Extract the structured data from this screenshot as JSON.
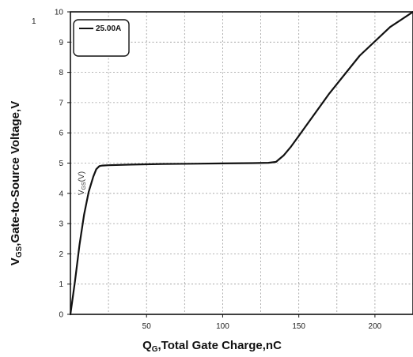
{
  "chart_data": {
    "type": "line",
    "panel_label": "1",
    "xlabel": {
      "main": "Q",
      "sub": "G",
      "rest": ",Total Gate Charge,nC"
    },
    "ylabel": {
      "main": "V",
      "sub": "GS",
      "rest": ",Gate-to-Source Voltage,V"
    },
    "inner_ylabel": "Vɢₛ(V)",
    "inner_ylabel_main": "V",
    "inner_ylabel_sub": "GS",
    "inner_ylabel_rest": "(V)",
    "xlim": [
      0,
      225
    ],
    "ylim": [
      0,
      10
    ],
    "x_ticks": [
      50,
      100,
      150,
      200
    ],
    "y_ticks": [
      0,
      1,
      2,
      3,
      4,
      5,
      6,
      7,
      8,
      9,
      10
    ],
    "x_grid": [
      25,
      50,
      75,
      100,
      125,
      150,
      175,
      200
    ],
    "y_grid": [
      1,
      2,
      3,
      4,
      5,
      6,
      7,
      8,
      9
    ],
    "grid": true,
    "legend_position": "top-left",
    "colors": {
      "line": "#111111",
      "grid": "#9a9a9a",
      "frame": "#111111"
    },
    "series": [
      {
        "name": "25.00A",
        "x": [
          0,
          3,
          6,
          9,
          12,
          15,
          17,
          19,
          21,
          25,
          40,
          60,
          80,
          100,
          120,
          130,
          135,
          140,
          145,
          150,
          170,
          190,
          210,
          225
        ],
        "y": [
          0,
          1.1,
          2.3,
          3.3,
          4.05,
          4.55,
          4.8,
          4.9,
          4.92,
          4.93,
          4.95,
          4.97,
          4.98,
          4.99,
          5.0,
          5.01,
          5.04,
          5.25,
          5.55,
          5.9,
          7.3,
          8.55,
          9.5,
          10.0
        ]
      }
    ]
  }
}
